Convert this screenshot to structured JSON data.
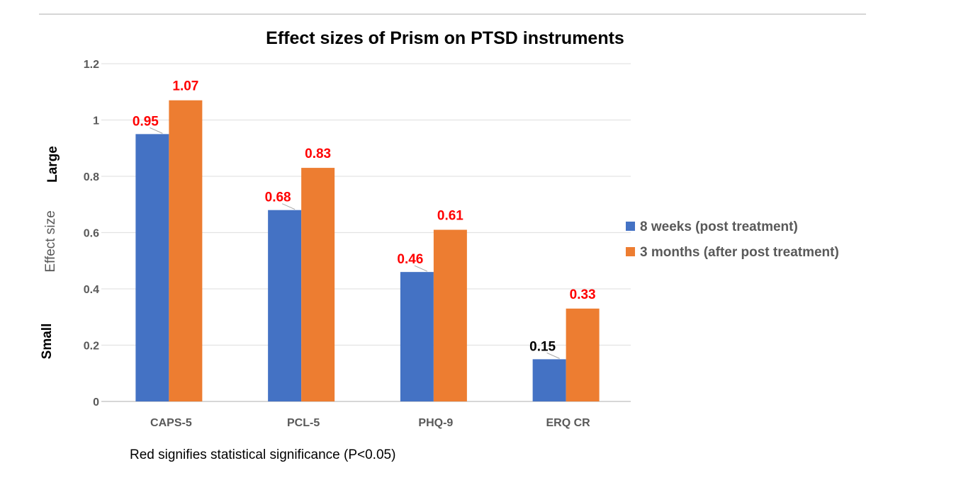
{
  "chart_data": {
    "type": "bar",
    "title": "Effect sizes of Prism on PTSD instruments",
    "ylabel": "Effect size",
    "ylabel_high": "Large",
    "ylabel_low": "Small",
    "xlabel": "",
    "categories": [
      "CAPS-5",
      "PCL-5",
      "PHQ-9",
      "ERQ CR"
    ],
    "ylim": [
      0,
      1.2
    ],
    "yticks": [
      "0",
      "0.2",
      "0.4",
      "0.6",
      "0.8",
      "1",
      "1.2"
    ],
    "grid": true,
    "legend_position": "right",
    "series": [
      {
        "name": "8 weeks (post treatment)",
        "color": "#4472C4",
        "values": [
          0.95,
          0.68,
          0.46,
          0.15
        ],
        "labels": [
          "0.95",
          "0.68",
          "0.46",
          "0.15"
        ],
        "significant": [
          true,
          true,
          true,
          false
        ]
      },
      {
        "name": "3 months (after post treatment)",
        "color": "#ED7D31",
        "values": [
          1.07,
          0.83,
          0.61,
          0.33
        ],
        "labels": [
          "1.07",
          "0.83",
          "0.61",
          "0.33"
        ],
        "significant": [
          true,
          true,
          true,
          true
        ]
      }
    ],
    "significant_color": "#FF0000",
    "footnote": "Red signifies statistical significance (P<0.05)"
  }
}
